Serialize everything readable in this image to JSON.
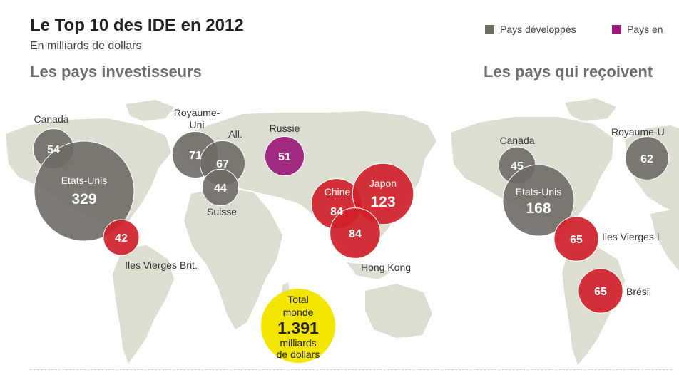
{
  "title": "Le Top 10 des IDE en 2012",
  "subtitle": "En milliards de dollars",
  "sections": {
    "left": "Les pays investisseurs",
    "right": "Les pays qui reçoivent"
  },
  "legend": [
    {
      "label": "Pays développés",
      "color": "#6f6c66"
    },
    {
      "label": "Pays en",
      "color": "#9b1a7a"
    }
  ],
  "total": {
    "line1": "Total",
    "line2": "monde",
    "value": "1.391",
    "line3": "milliards",
    "line4": "de dollars",
    "color": "#f2e500"
  },
  "colors": {
    "developed": "#6f6c66",
    "emerging": "#9b1a7a",
    "asia": "#d0212a",
    "map": "#ddddd2"
  },
  "chart_data": [
    {
      "type": "bubble",
      "title": "Les pays investisseurs",
      "unit": "milliards de dollars",
      "points": [
        {
          "country": "Canada",
          "value": 54,
          "group": "developed"
        },
        {
          "country": "Etats-Unis",
          "value": 329,
          "group": "developed"
        },
        {
          "country": "Royaume-Uni",
          "value": 71,
          "group": "developed"
        },
        {
          "country": "All.",
          "value": 67,
          "group": "developed"
        },
        {
          "country": "Suisse",
          "value": 44,
          "group": "developed"
        },
        {
          "country": "Russie",
          "value": 51,
          "group": "emerging"
        },
        {
          "country": "Chine",
          "value": 84,
          "group": "asia"
        },
        {
          "country": "Japon",
          "value": 123,
          "group": "asia"
        },
        {
          "country": "Hong Kong",
          "value": 84,
          "group": "asia"
        },
        {
          "country": "Iles Vierges Brit.",
          "value": 42,
          "group": "asia"
        }
      ]
    },
    {
      "type": "bubble",
      "title": "Les pays qui reçoivent",
      "unit": "milliards de dollars",
      "points": [
        {
          "country": "Canada",
          "value": 45,
          "group": "developed"
        },
        {
          "country": "Etats-Unis",
          "value": 168,
          "group": "developed"
        },
        {
          "country": "Royaume-U",
          "value": 62,
          "group": "developed"
        },
        {
          "country": "Iles Vierges I",
          "value": 65,
          "group": "asia"
        },
        {
          "country": "Brésil",
          "value": 65,
          "group": "asia"
        }
      ]
    }
  ]
}
